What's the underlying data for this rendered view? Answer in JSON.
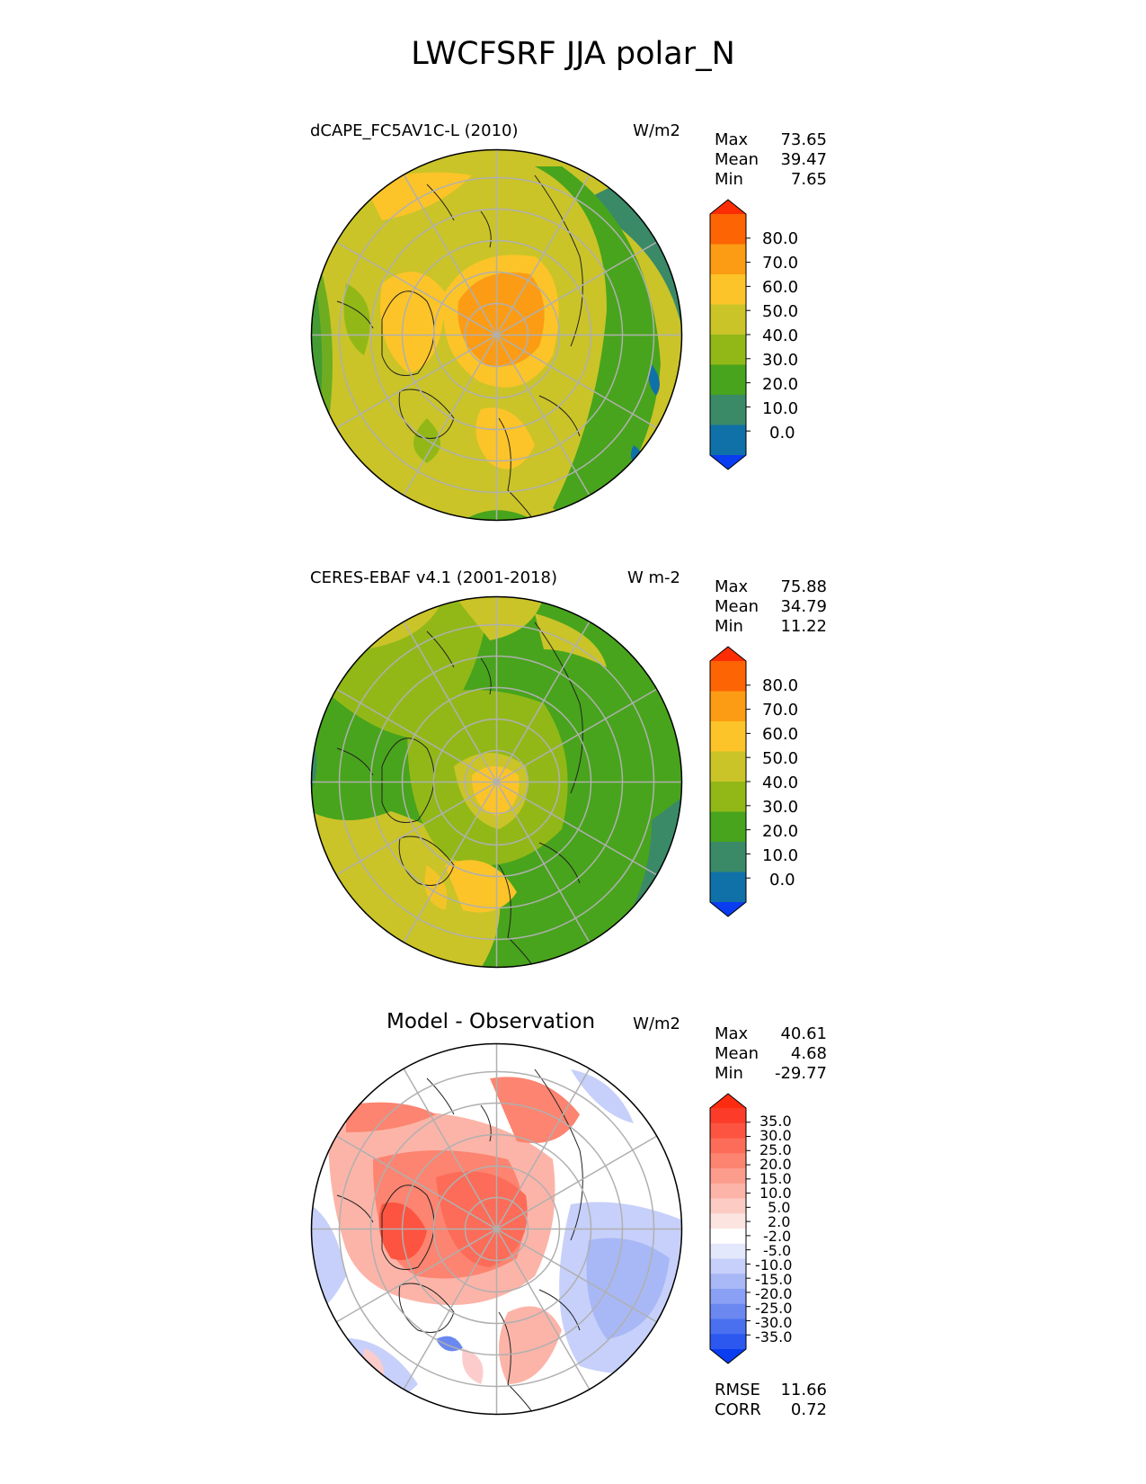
{
  "figure": {
    "title": "LWCFSRF JJA polar_N"
  },
  "panels": [
    {
      "id": "test",
      "title": "dCAPE_FC5AV1C-L (2010)",
      "units": "W/m2",
      "stats": [
        {
          "label": "Max",
          "value": "73.65"
        },
        {
          "label": "Mean",
          "value": "39.47"
        },
        {
          "label": "Min",
          "value": "7.65"
        }
      ],
      "colorbar": {
        "colors": [
          "#0a3cf0",
          "#1070a8",
          "#3a8a68",
          "#48a41c",
          "#92b818",
          "#cac428",
          "#fcc428",
          "#fc9c14",
          "#fc6404",
          "#fc2c04"
        ],
        "tick_labels": [
          "0.0",
          "10.0",
          "20.0",
          "30.0",
          "40.0",
          "50.0",
          "60.0",
          "70.0",
          "80.0"
        ]
      }
    },
    {
      "id": "reference",
      "title": "CERES-EBAF v4.1 (2001-2018)",
      "units": "W m-2",
      "stats": [
        {
          "label": "Max",
          "value": "75.88"
        },
        {
          "label": "Mean",
          "value": "34.79"
        },
        {
          "label": "Min",
          "value": "11.22"
        }
      ],
      "colorbar": {
        "colors": [
          "#0a3cf0",
          "#1070a8",
          "#3a8a68",
          "#48a41c",
          "#92b818",
          "#cac428",
          "#fcc428",
          "#fc9c14",
          "#fc6404",
          "#fc2c04"
        ],
        "tick_labels": [
          "0.0",
          "10.0",
          "20.0",
          "30.0",
          "40.0",
          "50.0",
          "60.0",
          "70.0",
          "80.0"
        ]
      }
    },
    {
      "id": "diff",
      "title": "Model - Observation",
      "units": "W/m2",
      "stats": [
        {
          "label": "Max",
          "value": "40.61"
        },
        {
          "label": "Mean",
          "value": "4.68"
        },
        {
          "label": "Min",
          "value": "-29.77"
        }
      ],
      "metrics": [
        {
          "label": "RMSE",
          "value": "11.66"
        },
        {
          "label": "CORR",
          "value": "0.72"
        }
      ],
      "colorbar": {
        "colors": [
          "#0a3cf0",
          "#2c58f0",
          "#4a70f0",
          "#6a88f0",
          "#8aa0f4",
          "#a8b8f6",
          "#c6d0fa",
          "#e4e8fc",
          "#ffffff",
          "#fce4e0",
          "#fcccc4",
          "#fcb4a8",
          "#fc9c8c",
          "#fc8470",
          "#fc6c58",
          "#fc5440",
          "#fc3c28",
          "#fc2c10"
        ],
        "tick_labels": [
          "-35.0",
          "-30.0",
          "-25.0",
          "-20.0",
          "-15.0",
          "-10.0",
          "-5.0",
          "-2.0",
          "2.0",
          "5.0",
          "10.0",
          "15.0",
          "20.0",
          "25.0",
          "30.0",
          "35.0"
        ]
      }
    }
  ]
}
